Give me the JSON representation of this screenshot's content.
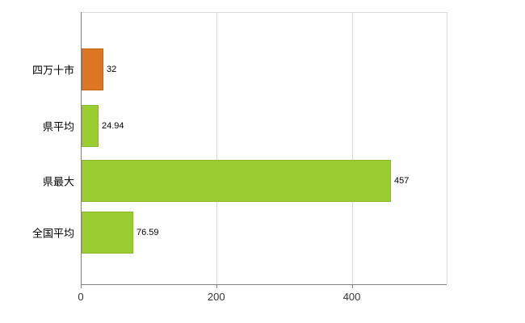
{
  "chart_data": {
    "type": "bar",
    "orientation": "horizontal",
    "title": "",
    "xlabel": "",
    "ylabel": "",
    "categories": [
      "四万十市",
      "県平均",
      "県最大",
      "全国平均"
    ],
    "values": [
      32,
      24.94,
      457,
      76.59
    ],
    "value_labels": [
      "32",
      "24.94",
      "457",
      "76.59"
    ],
    "bar_colors": [
      "#dd7622",
      "#9acd32",
      "#9acd32",
      "#9acd32"
    ],
    "bar_border_colors": [
      "#c2650f",
      "#8ab82a",
      "#8ab82a",
      "#8ab82a"
    ],
    "xticks": [
      0,
      200,
      400
    ],
    "xtick_labels": [
      "0",
      "200",
      "400"
    ],
    "xlim": [
      0,
      540
    ],
    "grid": true,
    "legend": "none",
    "background": "#ffffff"
  }
}
